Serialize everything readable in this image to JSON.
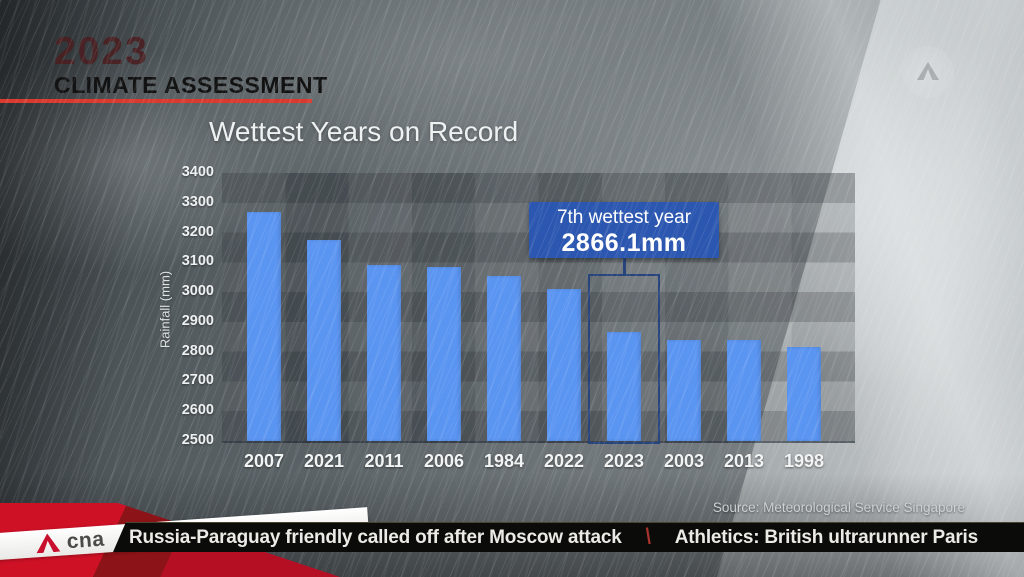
{
  "header": {
    "year": "2023",
    "subtitle": "CLIMATE ASSESSMENT",
    "accent_color": "#d93a2e"
  },
  "chart_data": {
    "type": "bar",
    "title": "Wettest Years on Record",
    "ylabel": "Rainfall (mm)",
    "categories": [
      "2007",
      "2021",
      "2011",
      "2006",
      "1984",
      "2022",
      "2023",
      "2003",
      "2013",
      "1998"
    ],
    "values": [
      3270,
      3175,
      3090,
      3085,
      3055,
      3010,
      2866.1,
      2840,
      2840,
      2815
    ],
    "ylim": [
      2500,
      3400
    ],
    "yticks": [
      3400,
      3300,
      3200,
      3100,
      3000,
      2900,
      2800,
      2700,
      2600,
      2500
    ],
    "grid": "horizontal-bands",
    "legend": "none",
    "bar_color": "#5b95f2",
    "highlight_index": 6,
    "annotation": {
      "line1": "7th wettest year",
      "line2": "2866.1mm",
      "bg_color": "#2c57b0",
      "outline_color": "#27447d"
    }
  },
  "source": {
    "label": "Source: Meteorological Service Singapore"
  },
  "ticker": {
    "items": [
      "Russia-Paraguay friendly called off after Moscow attack",
      "Athletics: British ultrarunner Paris"
    ],
    "separator": "\\",
    "separator_color": "#a8342c"
  },
  "logo": {
    "brand": "cna",
    "mark_color": "#c8102e"
  },
  "watermark": {
    "name": "cna-watermark"
  }
}
